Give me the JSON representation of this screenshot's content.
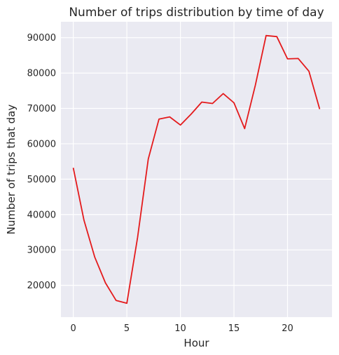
{
  "chart_data": {
    "type": "line",
    "title": "Number of trips distribution by time of day",
    "xlabel": "Hour",
    "ylabel": "Number of trips that day",
    "xlim": [
      -1.15,
      24.15
    ],
    "ylim": [
      11000,
      94500
    ],
    "xticks": [
      0,
      5,
      10,
      15,
      20
    ],
    "yticks": [
      20000,
      30000,
      40000,
      50000,
      60000,
      70000,
      80000,
      90000
    ],
    "grid": true,
    "background": "#eaeaf2",
    "grid_color": "#ffffff",
    "line_color": "#e41a1c",
    "series": [
      {
        "x": [
          0,
          1,
          2,
          3,
          4,
          5,
          6,
          7,
          8,
          9,
          10,
          11,
          12,
          13,
          14,
          15,
          16,
          17,
          18,
          19,
          20,
          21,
          22,
          23
        ],
        "values": [
          53200,
          38400,
          28000,
          20700,
          15700,
          14900,
          33500,
          55700,
          67000,
          67600,
          65300,
          68400,
          71800,
          71400,
          74200,
          71600,
          64300,
          76600,
          90600,
          90300,
          84000,
          84100,
          80500,
          69800
        ]
      }
    ]
  }
}
